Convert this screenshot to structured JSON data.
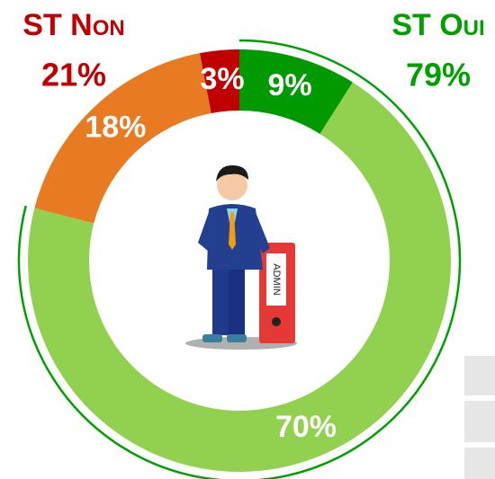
{
  "chart_data": {
    "type": "donut",
    "categories": [
      null,
      null,
      null,
      null
    ],
    "values": [
      9,
      70,
      18,
      3
    ],
    "value_labels": [
      "9%",
      "70%",
      "18%",
      "3%"
    ],
    "colors": [
      "#009a00",
      "#92d050",
      "#e87a22",
      "#c00000"
    ],
    "groups": [
      {
        "name": "ST Oui",
        "value": 79,
        "label": "79%",
        "color": "#00a000",
        "outline": true
      },
      {
        "name": "ST Non",
        "value": 21,
        "label": "21%",
        "color": "#c00000",
        "outline": false
      }
    ]
  }
}
